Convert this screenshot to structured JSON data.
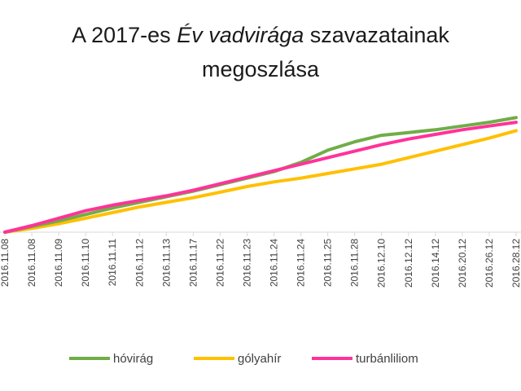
{
  "chart_data": {
    "type": "line",
    "title": {
      "prefix": "A 2017-es ",
      "emphasis": "Év vadvirága",
      "suffix": " szavazatainak",
      "line2": "megoszlása"
    },
    "x": [
      "2016.11.08",
      "2016.11.08",
      "2016.11.09",
      "2016.11.10",
      "2016.11.11",
      "2016.11.12",
      "2016.11.13",
      "2016.11.17",
      "2016.11.22",
      "2016.11.23",
      "2016.11.24",
      "2016.11.24",
      "2016.11.25",
      "2016.11.28",
      "2016.12.10",
      "2016.12.12",
      "2016.14.12",
      "2016.20.12",
      "2016.26.12",
      "2016.28.12"
    ],
    "series": [
      {
        "name": "hóvirág",
        "color": "#70AD47",
        "values": [
          0,
          6,
          12,
          19,
          26,
          32,
          38,
          44,
          51,
          58,
          65,
          75,
          88,
          97,
          104,
          107,
          110,
          114,
          118,
          123
        ]
      },
      {
        "name": "gólyahír",
        "color": "#FFC000",
        "values": [
          0,
          4,
          9,
          15,
          21,
          27,
          32,
          37,
          43,
          49,
          54,
          58,
          63,
          68,
          73,
          80,
          87,
          94,
          101,
          109
        ]
      },
      {
        "name": "turbánliliom",
        "color": "#FF3399",
        "values": [
          0,
          7,
          15,
          23,
          29,
          34,
          39,
          45,
          52,
          59,
          66,
          73,
          80,
          87,
          94,
          100,
          105,
          110,
          114,
          118
        ]
      }
    ],
    "ylim": [
      0,
      140
    ],
    "grid": false,
    "legend": "bottom"
  }
}
